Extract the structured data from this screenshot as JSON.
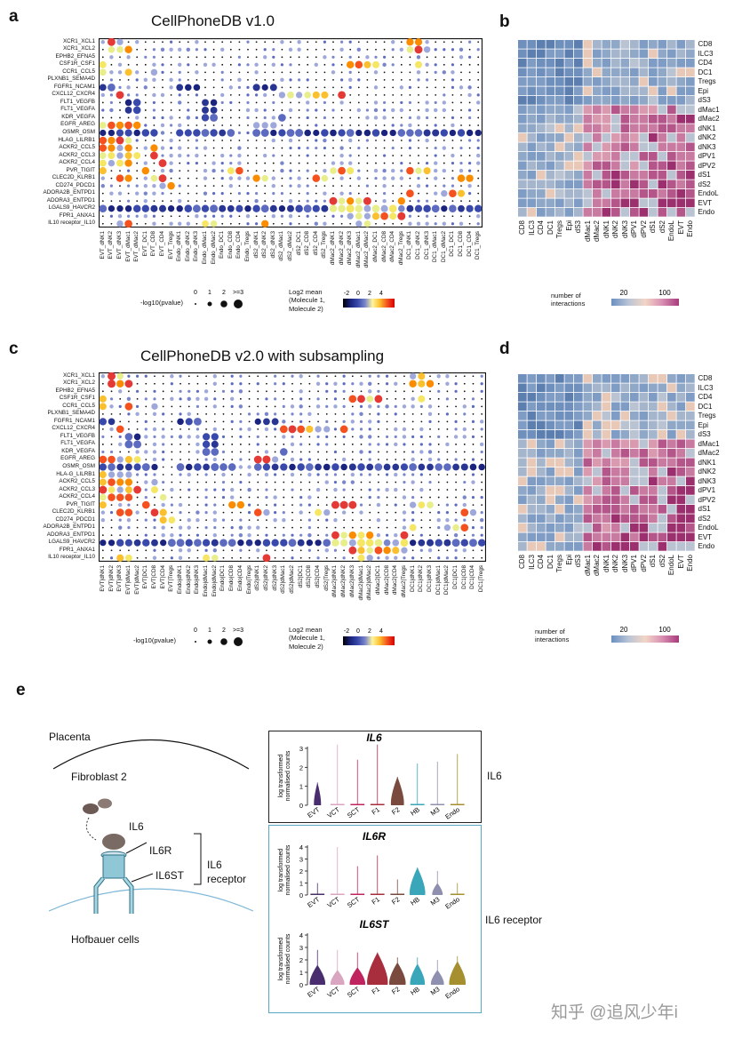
{
  "panel_labels": {
    "a": "a",
    "b": "b",
    "c": "c",
    "d": "d",
    "e": "e"
  },
  "panel_a": {
    "title": "CellPhoneDB v1.0",
    "rows": [
      "XCR1_XCL1",
      "XCR1_XCL2",
      "EPHB2_EFNA5",
      "CSF1R_CSF1",
      "CCR1_CCL5",
      "PLXNB1_SEMA4D",
      "FGFR1_NCAM1",
      "CXCL12_CXCR4",
      "FLT1_VEGFB",
      "FLT1_VEGFA",
      "KDR_VEGFA",
      "EGFR_AREG",
      "OSMR_OSM",
      "HLAG_LILRB1",
      "ACKR2_CCL5",
      "ACKR2_CCL3",
      "ACKR2_CCL4",
      "PVR_TIGIT",
      "CLEC2D_KLRB1",
      "CD274_PDCD1",
      "ADORA2B_ENTPD1",
      "ADORA3_ENTPD1",
      "LGALS9_HAVCR2",
      "FPR1_ANXA1",
      "IL10 receptor_IL10"
    ],
    "cols": [
      "EVT_dNK1",
      "EVT_dNK2",
      "EVT_dNK3",
      "EVT_dMac1",
      "EVT_dMac2",
      "EVT_DC1",
      "EVT_CD8",
      "EVT_CD4",
      "EVT_Tregs",
      "Endo_dNK1",
      "Endo_dNK2",
      "Endo_dNK3",
      "Endo_dMac1",
      "Endo_dMac2",
      "Endo_DC1",
      "Endo_CD8",
      "Endo_CD4",
      "Endo_Tregs",
      "dS2_dNK1",
      "dS2_dNK2",
      "dS2_dNK3",
      "dS2_dMac1",
      "dS2_dMac2",
      "dS2_DC1",
      "dS2_CD8",
      "dS2_CD4",
      "dS2_Tregs",
      "dMac2_dNK1",
      "dMac2_dNK2",
      "dMac2_dNK3",
      "dMac2_dMac1",
      "dMac2_dMac2",
      "dMac2_DC1",
      "dMac2_CD8",
      "dMac2_CD4",
      "dMac2_Tregs",
      "DC1_dNK1",
      "DC1_dNK2",
      "DC1_dNK3",
      "DC1_dMac1",
      "DC1_dMac2",
      "DC1_DC1",
      "DC1_CD8",
      "DC1_CD4",
      "DC1_Tregs"
    ],
    "legend_size_title": "-log10(pvalue)",
    "legend_size_ticks": [
      "0",
      "1",
      "2",
      ">=3"
    ],
    "legend_color_title": "Log2 mean\n(Molecule 1,\nMolecule 2)",
    "legend_color_ticks": [
      "-2",
      "0",
      "2",
      "4"
    ]
  },
  "panel_c": {
    "title": "CellPhoneDB v2.0 with subsampling",
    "rows": [
      "XCR1_XCL1",
      "XCR1_XCL2",
      "EPHB2_EFNA5",
      "CSF1R_CSF1",
      "CCR1_CCL5",
      "PLXNB1_SEMA4D",
      "FGFR1_NCAM1",
      "CXCL12_CXCR4",
      "FLT1_VEGFB",
      "FLT1_VEGFA",
      "KDR_VEGFA",
      "EGFR_AREG",
      "OSMR_OSM",
      "HLA-G_LILRB1",
      "ACKR2_CCL5",
      "ACKR2_CCL3",
      "ACKR2_CCL4",
      "PVR_TIGIT",
      "CLEC2D_KLRB1",
      "CD274_PDCD1",
      "ADORA2B_ENTPD1",
      "ADORA3_ENTPD1",
      "LGALS9_HAVCR2",
      "FPR1_ANXA1",
      "IL10 receptor_IL10"
    ],
    "cols": [
      "EVT|dNK1",
      "EVT|dNK2",
      "EVT|dNK3",
      "EVT|dMac1",
      "EVT|dMac2",
      "EVT|DC1",
      "EVT|CD8",
      "EVT|CD4",
      "EVT|Tregs",
      "Endo|dNK1",
      "Endo|dNK2",
      "Endo|dNK3",
      "Endo|dMac1",
      "Endo|dMac2",
      "Endo|DC1",
      "Endo|CD8",
      "Endo|CD4",
      "Endo|Tregs",
      "dS2|dNK1",
      "dS2|dNK2",
      "dS2|dNK3",
      "dS2|dMac1",
      "dS2|dMac2",
      "dS2|DC1",
      "dS2|CD8",
      "dS2|CD4",
      "dS2|Tregs",
      "dMac2|dNK1",
      "dMac2|dNK2",
      "dMac2|dNK3",
      "dMac2|dMac1",
      "dMac2|dMac2",
      "dMac2|DC1",
      "dMac2|CD8",
      "dMac2|CD4",
      "dMac2|Tregs",
      "DC1|dNK1",
      "DC1|dNK2",
      "DC1|dNK3",
      "DC1|dMac1",
      "DC1|dMac2",
      "DC1|DC1",
      "DC1|CD8",
      "DC1|CD4",
      "DC1|Tregs"
    ],
    "legend_size_title": "-log10(pvalue)",
    "legend_size_ticks": [
      "0",
      "1",
      "2",
      ">=3"
    ],
    "legend_color_title": "Log2 mean\n(Molecule 1,\nMolecule 2)",
    "legend_color_ticks": [
      "-2",
      "0",
      "2",
      "4"
    ]
  },
  "panel_b": {
    "cells": [
      "CD8",
      "ILC3",
      "CD4",
      "DC1",
      "Tregs",
      "Epi",
      "dS3",
      "dMac1",
      "dMac2",
      "dNK1",
      "dNK2",
      "dNK3",
      "dPV1",
      "dPV2",
      "dS1",
      "dS2",
      "EndoL",
      "EVT",
      "Endo"
    ],
    "legend_title": "number of\ninteractions",
    "legend_ticks": [
      "20",
      "100"
    ]
  },
  "panel_d": {
    "cells": [
      "CD8",
      "ILC3",
      "CD4",
      "DC1",
      "Tregs",
      "Epi",
      "dS3",
      "dMac1",
      "dMac2",
      "dNK1",
      "dNK2",
      "dNK3",
      "dPV1",
      "dPV2",
      "dS1",
      "dS2",
      "EndoL",
      "EVT",
      "Endo"
    ],
    "legend_title": "number of\ninteractions",
    "legend_ticks": [
      "20",
      "100"
    ]
  },
  "panel_e": {
    "placenta": "Placenta",
    "fibroblast": "Fibroblast 2",
    "il6": "IL6",
    "il6r": "IL6R",
    "il6st": "IL6ST",
    "receptor_label": "IL6\nreceptor",
    "hofbauer": "Hofbauer cells",
    "violin_ylabel": "log transformed\nnormalised counts",
    "violin_cats": [
      "EVT",
      "VCT",
      "SCT",
      "F1",
      "F2",
      "HB",
      "M3",
      "Endo"
    ],
    "violins": [
      {
        "gene": "IL6",
        "side_label": "IL6",
        "yticks": [
          "0",
          "1",
          "2",
          "3"
        ]
      },
      {
        "gene": "IL6R",
        "side_label": "IL6 receptor",
        "yticks": [
          "0",
          "1",
          "2",
          "3",
          "4"
        ]
      },
      {
        "gene": "IL6ST",
        "side_label": "",
        "yticks": [
          "0",
          "1",
          "2",
          "3",
          "4"
        ]
      }
    ]
  },
  "watermark": "知乎 @追风少年i"
}
